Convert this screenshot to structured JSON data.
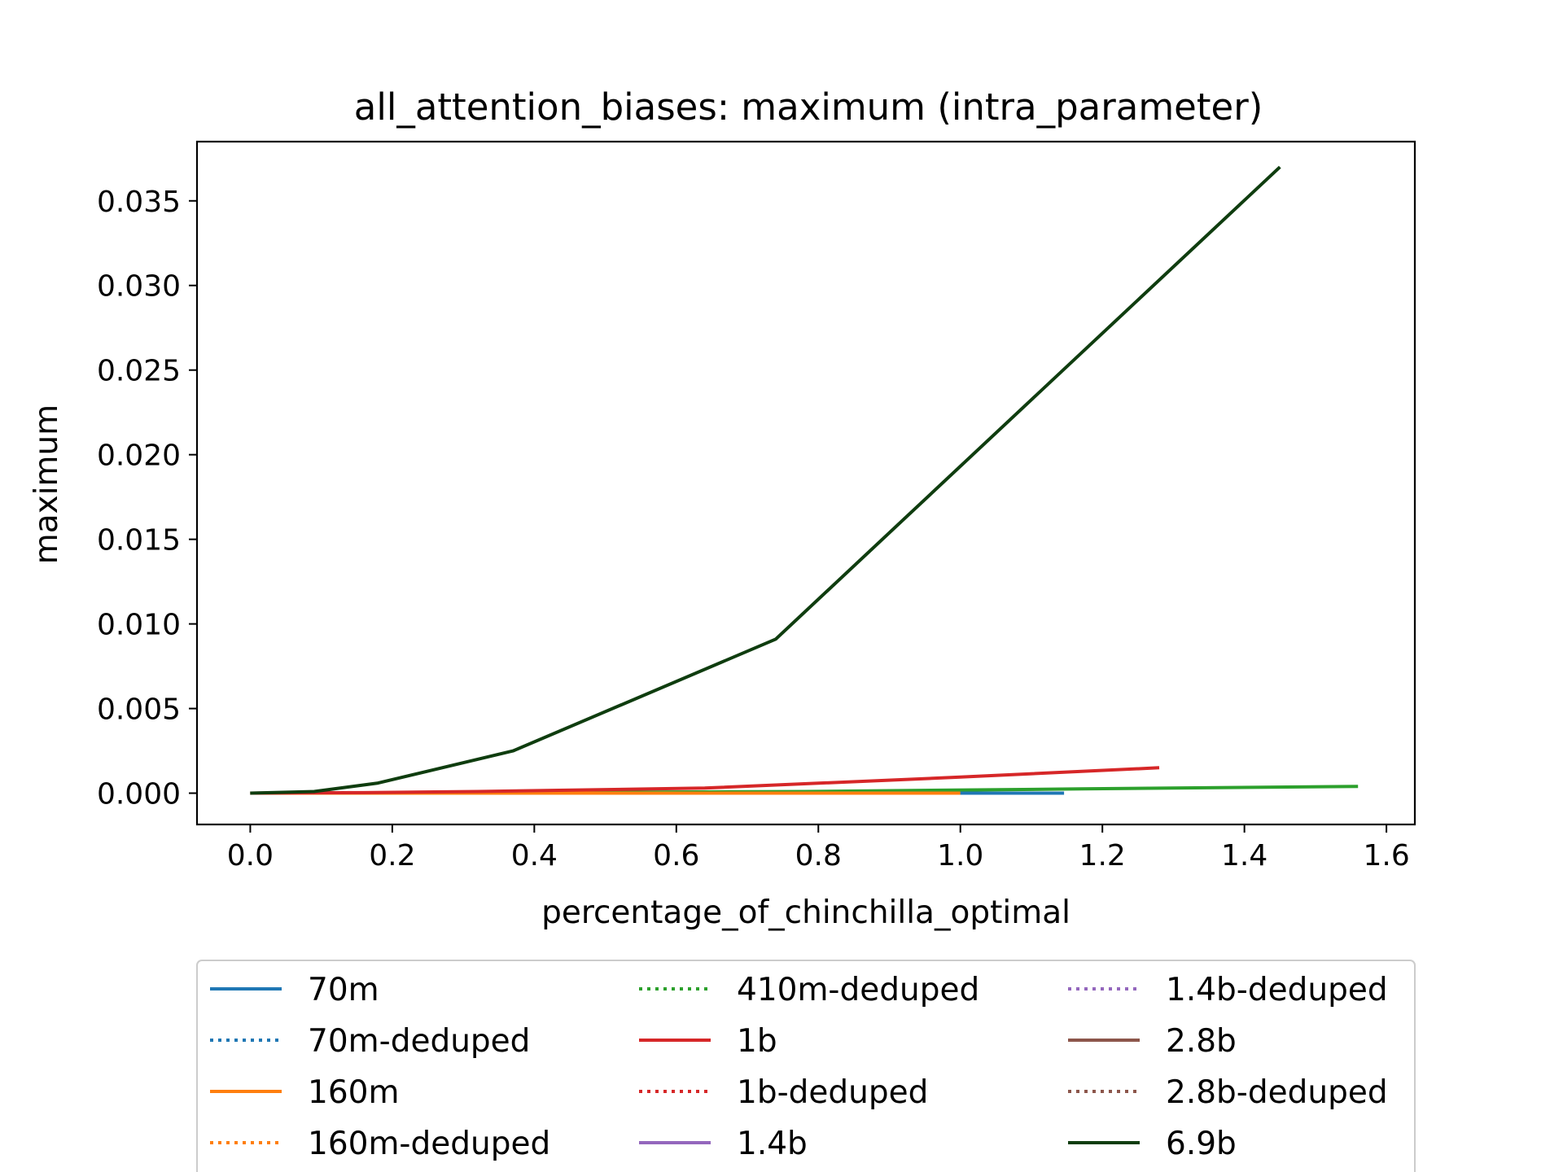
{
  "chart_data": {
    "type": "line",
    "title": "all_attention_biases: maximum (intra_parameter)",
    "xlabel": "percentage_of_chinchilla_optimal",
    "ylabel": "maximum",
    "xlim": [
      -0.075,
      1.64
    ],
    "ylim": [
      -0.00185,
      0.0385
    ],
    "xticks": [
      "0.0",
      "0.2",
      "0.4",
      "0.6",
      "0.8",
      "1.0",
      "1.2",
      "1.4",
      "1.6"
    ],
    "xtick_values": [
      0.0,
      0.2,
      0.4,
      0.6,
      0.8,
      1.0,
      1.2,
      1.4,
      1.6
    ],
    "yticks": [
      "0.000",
      "0.005",
      "0.010",
      "0.015",
      "0.020",
      "0.025",
      "0.030",
      "0.035"
    ],
    "ytick_values": [
      0.0,
      0.005,
      0.01,
      0.015,
      0.02,
      0.025,
      0.03,
      0.035
    ],
    "grid": false,
    "legend_position": "bottom",
    "series": [
      {
        "name": "70m",
        "color": "#1f77b4",
        "dash": "solid",
        "x": [
          0.0,
          1.0,
          1.146
        ],
        "y": [
          0.0,
          0.0,
          0.0
        ]
      },
      {
        "name": "70m-deduped",
        "color": "#1f77b4",
        "dash": "dotted",
        "x": [],
        "y": []
      },
      {
        "name": "160m",
        "color": "#ff7f0e",
        "dash": "solid",
        "x": [
          0.0,
          0.5,
          1.0
        ],
        "y": [
          0.0,
          0.0,
          0.0
        ]
      },
      {
        "name": "160m-deduped",
        "color": "#ff7f0e",
        "dash": "dotted",
        "x": [],
        "y": []
      },
      {
        "name": "410m-deduped",
        "color": "#2ca02c",
        "dash": "dotted",
        "x": [],
        "y": []
      },
      {
        "name": "1b",
        "color": "#d62728",
        "dash": "solid",
        "x": [
          0.0,
          0.16,
          0.32,
          0.64,
          1.0,
          1.28
        ],
        "y": [
          0.0,
          3e-05,
          0.0001,
          0.0003,
          0.00095,
          0.0015
        ]
      },
      {
        "name": "1b-deduped",
        "color": "#d62728",
        "dash": "dotted",
        "x": [],
        "y": []
      },
      {
        "name": "1.4b",
        "color": "#9467bd",
        "dash": "solid",
        "x": [],
        "y": []
      },
      {
        "name": "1.4b-deduped",
        "color": "#9467bd",
        "dash": "dotted",
        "x": [],
        "y": []
      },
      {
        "name": "2.8b",
        "color": "#8c564b",
        "dash": "solid",
        "x": [],
        "y": []
      },
      {
        "name": "2.8b-deduped",
        "color": "#8c564b",
        "dash": "dotted",
        "x": [],
        "y": []
      },
      {
        "name": "6.9b",
        "color": "#0f3d0f",
        "dash": "solid",
        "x": [
          0.0,
          0.09,
          0.18,
          0.37,
          0.74,
          1.45
        ],
        "y": [
          0.0,
          0.0001,
          0.0006,
          0.0025,
          0.0091,
          0.037
        ]
      }
    ],
    "extra_lines": [
      {
        "color": "#2ca02c",
        "dash": "solid",
        "x": [
          0.0,
          0.39,
          0.78,
          1.17,
          1.56
        ],
        "y": [
          0.0,
          3e-05,
          0.0001,
          0.00025,
          0.0004
        ]
      }
    ]
  }
}
